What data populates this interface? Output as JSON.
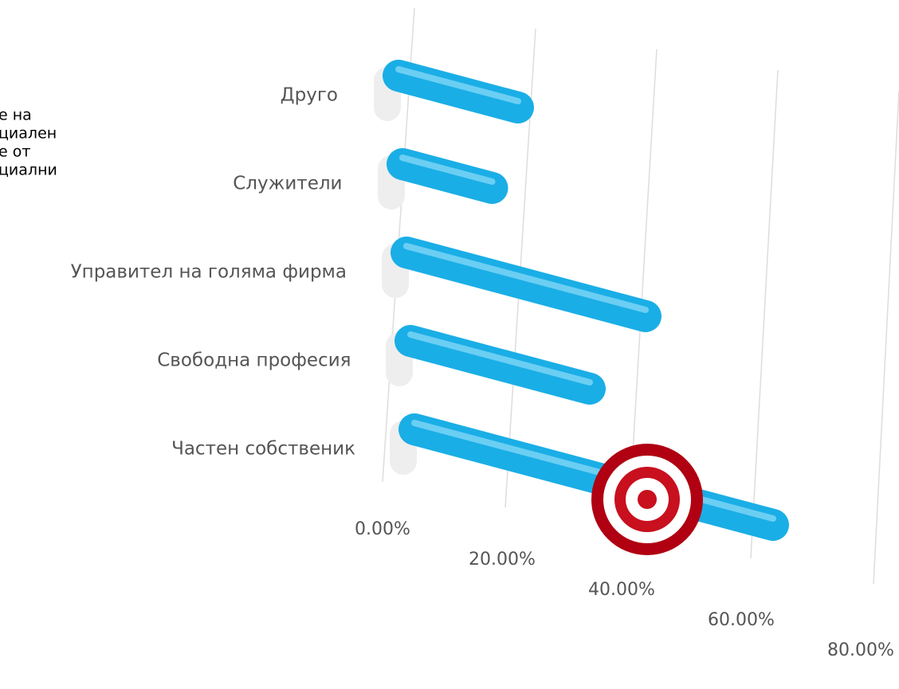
{
  "chart_data": {
    "type": "bar3d",
    "side_text": [
      "е на",
      "циален",
      "е от",
      "циални"
    ],
    "categories": [
      "Друго",
      "Служители",
      "Управител на голяма фирма",
      "Свободна професия",
      "Частен собственик"
    ],
    "values": [
      20,
      15,
      40,
      30,
      60
    ],
    "color": "#1aaee6",
    "xlim": [
      0,
      80
    ],
    "xticks": [
      {
        "value": 0,
        "label": "0.00%"
      },
      {
        "value": 20,
        "label": "20.00%"
      },
      {
        "value": 40,
        "label": "40.00%"
      },
      {
        "value": 60,
        "label": "60.00%"
      },
      {
        "value": 80,
        "label": "80.00%"
      }
    ],
    "grid": true
  }
}
